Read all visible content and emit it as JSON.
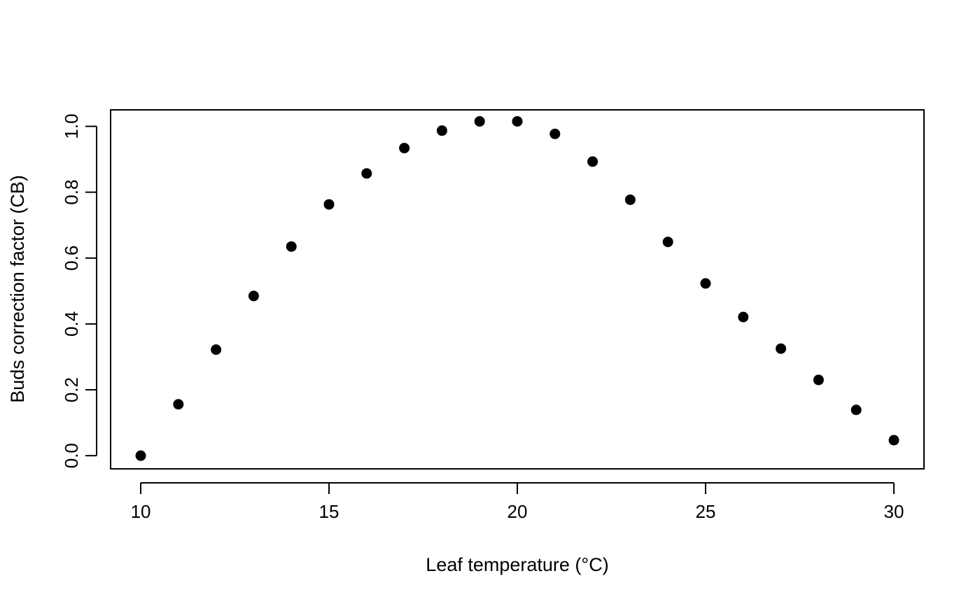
{
  "chart_data": {
    "type": "scatter",
    "title": "",
    "xlabel": "Leaf temperature (°C)",
    "ylabel": "Buds correction factor (CB)",
    "xlim": [
      9.2,
      30.8
    ],
    "ylim": [
      -0.04,
      1.05
    ],
    "x_ticks": [
      10,
      15,
      20,
      25,
      30
    ],
    "x_tick_labels": [
      "10",
      "15",
      "20",
      "25",
      "30"
    ],
    "y_ticks": [
      0.0,
      0.2,
      0.4,
      0.6,
      0.8,
      1.0
    ],
    "y_tick_labels": [
      "0.0",
      "0.2",
      "0.4",
      "0.6",
      "0.8",
      "1.0"
    ],
    "grid": false,
    "legend": "none",
    "marker_color": "#000000",
    "series": [
      {
        "x": [
          10,
          11,
          12,
          13,
          14,
          15,
          16,
          17,
          18,
          19,
          20,
          21,
          22,
          23,
          24,
          25,
          26,
          27,
          28,
          29,
          30
        ],
        "y": [
          0.0,
          0.156,
          0.322,
          0.485,
          0.635,
          0.763,
          0.857,
          0.934,
          0.987,
          1.015,
          1.015,
          0.977,
          0.893,
          0.777,
          0.649,
          0.523,
          0.421,
          0.325,
          0.23,
          0.139,
          0.047
        ]
      }
    ]
  }
}
